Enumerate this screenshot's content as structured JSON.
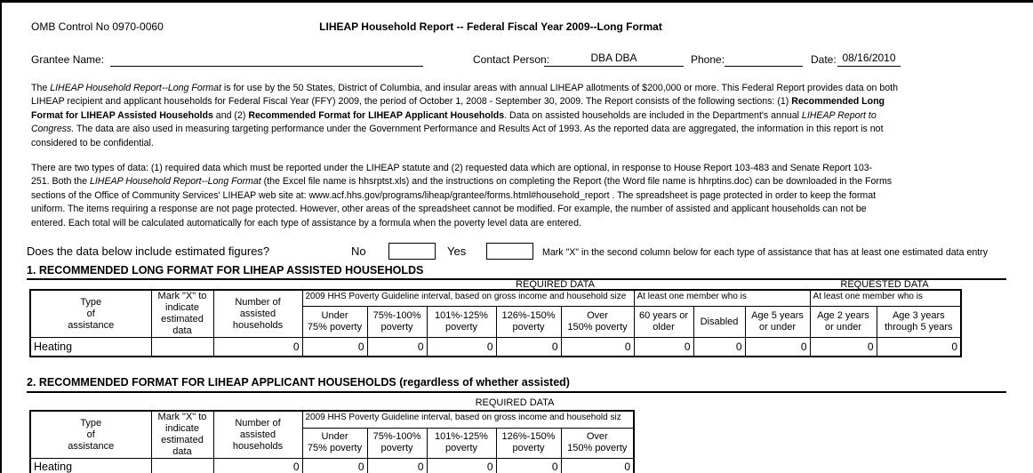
{
  "colors": {
    "ink": "#000000",
    "paper": "#ffffff"
  },
  "header": {
    "omb_control": "OMB Control No 0970-0060",
    "title": "LIHEAP Household Report -- Federal Fiscal Year 2009--Long Format",
    "grantee_label": "Grantee Name:",
    "grantee_value": "",
    "contact_label": "Contact Person:",
    "contact_value": "DBA DBA",
    "phone_label": "Phone:",
    "phone_value": "",
    "date_label": "Date:",
    "date_value": "08/16/2010"
  },
  "intro": {
    "p1": [
      [
        {
          "t": "The "
        },
        {
          "t": "LIHEAP Household Report--Long Format",
          "i": 1
        },
        {
          "t": " is for use by the 50 States, District of Columbia, and insular areas with annual LIHEAP allotments of $200,000 or more.  This Federal Report provides data on both"
        }
      ],
      [
        {
          "t": "LIHEAP recipient and applicant households for Federal Fiscal Year (FFY) 2009, the period of October 1, 2008 - September 30, 2009.  The Report consists of the following sections:  (1)  "
        },
        {
          "t": "Recommended Long",
          "b": 1
        }
      ],
      [
        {
          "t": "Format for LIHEAP Assisted Households",
          "b": 1
        },
        {
          "t": " and (2) "
        },
        {
          "t": "Recommended Format for LIHEAP Applicant Households",
          "b": 1
        },
        {
          "t": ".  Data on assisted households are included in the Department's annual "
        },
        {
          "t": "LIHEAP Report to",
          "i": 1
        }
      ],
      [
        {
          "t": "Congress.",
          "i": 1
        },
        {
          "t": " The data are also used in measuring targeting performance under the Government Performance and Results Act of 1993.  As the reported data are aggregated, the information in this report is not"
        }
      ],
      [
        {
          "t": "considered to be confidential."
        }
      ]
    ],
    "p2": [
      [
        {
          "t": "There are two types of data:  (1) required data which must be reported under the LIHEAP statute and (2)  requested data which are optional, in response to House Report 103-483 and Senate Report 103-"
        }
      ],
      [
        {
          "t": "251.  Both the "
        },
        {
          "t": "LIHEAP Household Report--Long Format",
          "i": 1
        },
        {
          "t": " (the Excel file name is hhsrptst.xls) and the instructions on completing the Report (the Word file name is hhrptins.doc) can be downloaded in the Forms"
        }
      ],
      [
        {
          "t": "sections of the Office of Community Services' LIHEAP web site at:  www.acf.hhs.gov/programs/liheap/grantee/forms.html#household_report .  The spreadsheet is page protected in order to keep the format"
        }
      ],
      [
        {
          "t": "uniform. The items requiring a response are not page protected.  However, other areas of the spreadsheet cannot be modified.  For example, the number of assisted and applicant households can not be"
        }
      ],
      [
        {
          "t": "entered.  Each total will be calculated automatically for each type of assistance by a formula when the poverty level data are entered."
        }
      ]
    ]
  },
  "estimate_row": {
    "question": "Does the data below include estimated figures?",
    "no_label": "No",
    "no_value": "",
    "yes_label": "Yes",
    "yes_value": "",
    "instruction": "Mark \"X\" in the second column below for each type of assistance that has at least one estimated data entry"
  },
  "section1": {
    "heading": "1. RECOMMENDED LONG FORMAT FOR LIHEAP ASSISTED HOUSEHOLDS",
    "required_label": "REQUIRED DATA",
    "requested_label": "REQUESTED DATA",
    "table": {
      "headers": {
        "type": "Type\nof\nassistance",
        "mark_x": "Mark \"X\" to\nindicate\nestimated data",
        "households": "Number of\nassisted\nhouseholds",
        "poverty_group": "2009 HHS Poverty Guideline interval, based on gross income and household size",
        "member_group_required": "At least one member who is",
        "member_group_requested": "At least one member who is",
        "columns": [
          "Under\n75% poverty",
          "75%-100%\npoverty",
          "101%-125%\npoverty",
          "126%-150%\npoverty",
          "Over\n150% poverty",
          "60 years or\nolder",
          "Disabled",
          "Age 5 years\nor under",
          "Age 2 years\nor under",
          "Age 3 years\nthrough 5 years"
        ]
      },
      "rows": [
        {
          "type": "Heating",
          "mark_x": "",
          "values": [
            "0",
            "0",
            "0",
            "0",
            "0",
            "0",
            "0",
            "0",
            "0",
            "0",
            "0"
          ]
        }
      ]
    }
  },
  "section2": {
    "heading": "2. RECOMMENDED FORMAT FOR LIHEAP APPLICANT HOUSEHOLDS (regardless of whether assisted)",
    "required_label": "REQUIRED DATA",
    "table": {
      "headers": {
        "type": "Type\nof\nassistance",
        "mark_x": "Mark \"X\" to\nindicate\nestimated data",
        "households": "Number of\nassisted\nhouseholds",
        "poverty_group": "2009 HHS Poverty Guideline interval, based on gross income and household siz",
        "columns": [
          "Under\n75% poverty",
          "75%-100%\npoverty",
          "101%-125%\npoverty",
          "126%-150%\npoverty",
          "Over\n150% poverty"
        ]
      },
      "rows": [
        {
          "type": "Heating",
          "mark_x": "",
          "values": [
            "0",
            "0",
            "0",
            "0",
            "0",
            "0"
          ]
        }
      ]
    }
  }
}
